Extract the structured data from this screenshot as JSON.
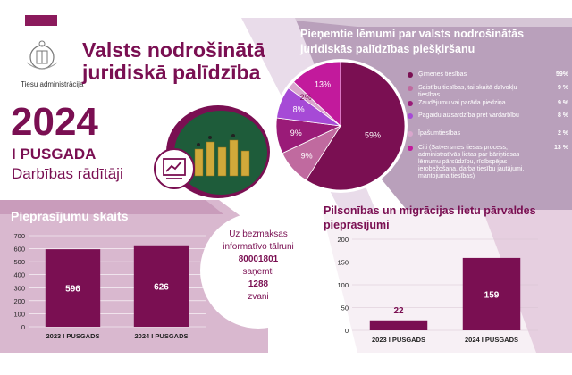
{
  "header": {
    "org_name": "Tiesu administrācija",
    "title_line1": "Valsts nodrošinātā",
    "title_line2": "juridiskā palīdzība",
    "year": "2024",
    "period": "I PUSGADA",
    "subtitle": "Darbības rādītāji"
  },
  "info": {
    "line1": "Uz bezmaksas",
    "line2": "informatīvo tālruni",
    "phone": "80001801",
    "line3": "saņemti",
    "calls": "1288",
    "calls_word": "zvani"
  },
  "colors": {
    "brand": "#7a0f52",
    "pink_light": "#e9c6dc",
    "pink_mid": "#c06a9f",
    "magenta": "#b21f8e"
  },
  "chart_data": [
    {
      "type": "pie",
      "title": "Pieņemtie lēmumi par valsts nodrošinātās juridiskās palīdzības piešķiršanu",
      "slices": [
        {
          "label": "Ģimenes tiesības",
          "value": 59,
          "display": "59%",
          "legend_value": "59%",
          "color": "#7a0f52"
        },
        {
          "label": "Saistību tiesības, tai skaitā dzīvokļu tiesības",
          "value": 9,
          "display": "9%",
          "legend_value": "9 %",
          "color": "#c06a9f"
        },
        {
          "label": "Zaudējumu vai parāda piedziņa",
          "value": 9,
          "display": "9%",
          "legend_value": "9 %",
          "color": "#9a1b78"
        },
        {
          "label": "Pagaidu aizsardzība pret vardarbību",
          "value": 8,
          "display": "8%",
          "legend_value": "8 %",
          "color": "#a64ad6"
        },
        {
          "label": "Īpašumtiesības",
          "value": 2,
          "display": "2%",
          "legend_value": "2 %",
          "color": "#d9a6cd"
        },
        {
          "label": "Citi (Satversmes tiesas process, administratīvās lietas par bāriņtiesas lēmumu pārsūdzību, rīcībspējas ierobežošana, darba tiesību jautājumi, mantojuma tiesības)",
          "value": 13,
          "display": "13%",
          "legend_value": "13 %",
          "color": "#c21a9c"
        }
      ]
    },
    {
      "type": "bar",
      "title": "Pieprasījumu skaits",
      "categories": [
        "2023 I PUSGADS",
        "2024 I PUSGADS"
      ],
      "values": [
        596,
        626
      ],
      "ylim": [
        0,
        700
      ],
      "yticks": [
        0,
        100,
        200,
        300,
        400,
        500,
        600,
        700
      ]
    },
    {
      "type": "bar",
      "title": "Pilsonības un migrācijas lietu pārvaldes pieprasījumi",
      "categories": [
        "2023 I PUSGADS",
        "2024 I PUSGADS"
      ],
      "values": [
        22,
        159
      ],
      "ylim": [
        0,
        200
      ],
      "yticks": [
        0,
        50,
        100,
        150,
        200
      ]
    }
  ]
}
